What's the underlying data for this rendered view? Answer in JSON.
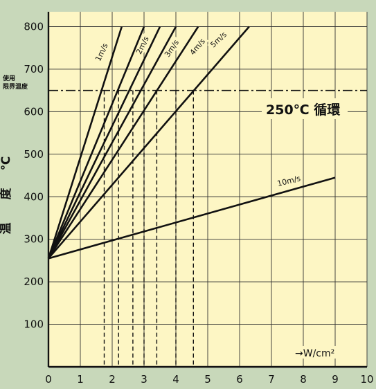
{
  "chart_data": {
    "type": "line",
    "title": "",
    "ylabel_chars": [
      "温",
      "度",
      "℃"
    ],
    "xlabel": "→W/cm²",
    "xlim": [
      0,
      10
    ],
    "ylim": [
      0,
      800
    ],
    "x_ticks": [
      "0",
      "1",
      "2",
      "3",
      "4",
      "5",
      "6",
      "7",
      "8",
      "9",
      "10"
    ],
    "y_ticks": [
      "100",
      "200",
      "300",
      "400",
      "500",
      "600",
      "700",
      "800"
    ],
    "grid": true,
    "limit_line": {
      "label_lines": [
        "使用",
        "限界温度"
      ],
      "value": 650
    },
    "annotation": "250℃ 循環",
    "series": [
      {
        "name": "1m/s",
        "x": [
          0,
          2.3
        ],
        "y": [
          255,
          800
        ]
      },
      {
        "name": "2m/s",
        "x": [
          0,
          3.0
        ],
        "y": [
          255,
          800
        ]
      },
      {
        "name": "",
        "x": [
          0,
          3.5
        ],
        "y": [
          255,
          800
        ]
      },
      {
        "name": "3m/s",
        "x": [
          0,
          4.0
        ],
        "y": [
          255,
          800
        ]
      },
      {
        "name": "4m/s",
        "x": [
          0,
          4.7
        ],
        "y": [
          255,
          800
        ]
      },
      {
        "name": "5m/s",
        "x": [
          0,
          6.3
        ],
        "y": [
          255,
          800
        ]
      },
      {
        "name": "10m/s",
        "x": [
          0,
          9.0
        ],
        "y": [
          255,
          445
        ]
      }
    ],
    "dashed_drops_x": [
      1.75,
      2.2,
      2.65,
      3.0,
      3.4,
      4.0,
      4.55
    ]
  }
}
